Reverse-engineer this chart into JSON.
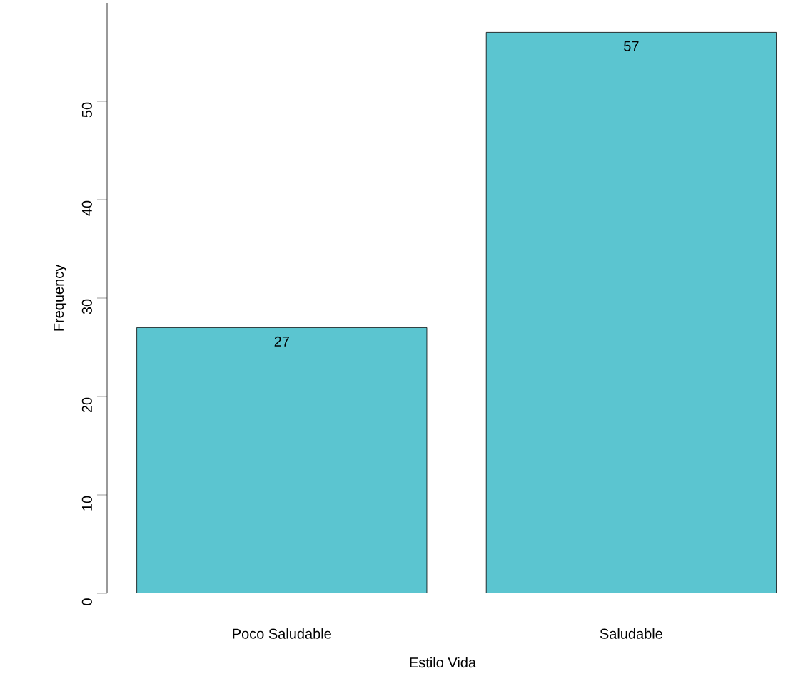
{
  "chart_data": {
    "type": "bar",
    "xlabel": "Estilo Vida",
    "ylabel": "Frequency",
    "categories": [
      "Poco Saludable",
      "Saludable"
    ],
    "values": [
      27,
      57
    ],
    "color": "#5bc5d0",
    "value_labels": [
      "27",
      "57"
    ],
    "ylim": [
      0,
      60
    ],
    "yticks": [
      0,
      10,
      20,
      30,
      40,
      50
    ],
    "grid": false
  }
}
